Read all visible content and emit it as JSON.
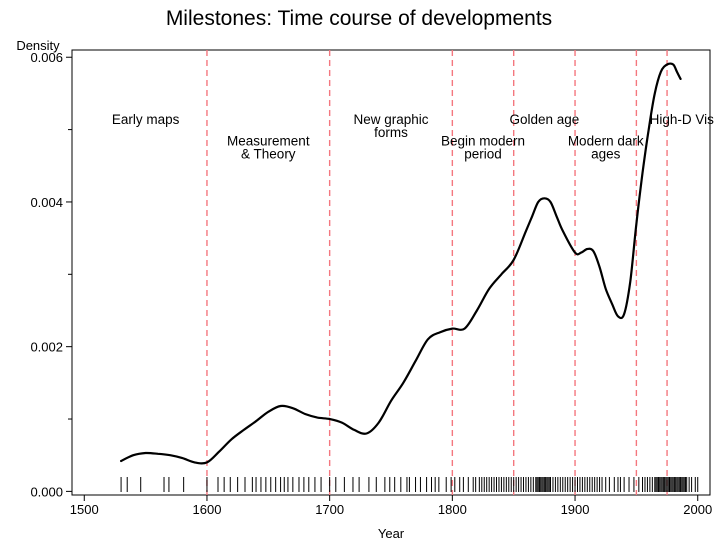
{
  "chart_data": {
    "type": "line",
    "title": "Milestones: Time course of developments",
    "xlabel": "Year",
    "ylabel": "Density",
    "xlim": [
      1490,
      2010
    ],
    "ylim": [
      -5e-05,
      0.0061
    ],
    "x_ticks": [
      1500,
      1600,
      1700,
      1800,
      1900,
      2000
    ],
    "y_ticks": [
      0.0,
      0.002,
      0.004,
      0.006
    ],
    "y_tick_labels": [
      "0.000",
      "0.002",
      "0.004",
      "0.006"
    ],
    "y_minor_ticks": [
      0.001,
      0.003,
      0.005
    ],
    "grid": false,
    "series": [
      {
        "color": "#000000",
        "x": [
          1530,
          1540,
          1550,
          1560,
          1570,
          1580,
          1590,
          1600,
          1610,
          1620,
          1630,
          1640,
          1650,
          1660,
          1670,
          1680,
          1690,
          1700,
          1710,
          1720,
          1730,
          1740,
          1750,
          1760,
          1770,
          1780,
          1790,
          1800,
          1810,
          1820,
          1830,
          1840,
          1850,
          1860,
          1865,
          1870,
          1875,
          1880,
          1885,
          1890,
          1900,
          1905,
          1910,
          1915,
          1920,
          1925,
          1930,
          1935,
          1940,
          1945,
          1950,
          1955,
          1960,
          1965,
          1970,
          1975,
          1980,
          1983,
          1986
        ],
        "y": [
          0.00042,
          0.0005,
          0.00053,
          0.00052,
          0.0005,
          0.00046,
          0.0004,
          0.0004,
          0.00055,
          0.00072,
          0.00085,
          0.00097,
          0.0011,
          0.00118,
          0.00115,
          0.00107,
          0.00102,
          0.001,
          0.00095,
          0.00085,
          0.0008,
          0.00095,
          0.00125,
          0.0015,
          0.0018,
          0.0021,
          0.0022,
          0.00225,
          0.00225,
          0.0025,
          0.0028,
          0.003,
          0.0032,
          0.0036,
          0.0038,
          0.004,
          0.00405,
          0.004,
          0.0038,
          0.0036,
          0.0033,
          0.0033,
          0.00335,
          0.00332,
          0.0031,
          0.0028,
          0.0026,
          0.00242,
          0.00245,
          0.0029,
          0.0037,
          0.0044,
          0.005,
          0.0055,
          0.0058,
          0.0059,
          0.0059,
          0.0058,
          0.0057
        ]
      }
    ],
    "period_lines": [
      1600,
      1700,
      1800,
      1850,
      1900,
      1950,
      1975
    ],
    "period_line_color": "#f4777f",
    "period_labels": [
      {
        "lines": [
          "Early maps"
        ],
        "x": 1550,
        "y": 0.00508
      },
      {
        "lines": [
          "Measurement",
          "& Theory"
        ],
        "x": 1650,
        "y": 0.00478
      },
      {
        "lines": [
          "New graphic",
          "forms"
        ],
        "x": 1750,
        "y": 0.00508
      },
      {
        "lines": [
          "Begin modern",
          "period"
        ],
        "x": 1825,
        "y": 0.00478
      },
      {
        "lines": [
          "Golden age"
        ],
        "x": 1875,
        "y": 0.00508
      },
      {
        "lines": [
          "Modern dark",
          "ages"
        ],
        "x": 1925,
        "y": 0.00478
      },
      {
        "lines": [
          "High-D Vis"
        ],
        "x": 1987,
        "y": 0.00508
      }
    ],
    "rug": [
      1530,
      1535,
      1546,
      1565,
      1569,
      1581,
      1600,
      1609,
      1614,
      1619,
      1625,
      1631,
      1637,
      1640,
      1644,
      1648,
      1652,
      1656,
      1660,
      1663,
      1666,
      1670,
      1675,
      1679,
      1683,
      1688,
      1693,
      1700,
      1705,
      1712,
      1719,
      1724,
      1732,
      1738,
      1745,
      1749,
      1753,
      1758,
      1763,
      1765,
      1770,
      1774,
      1779,
      1783,
      1786,
      1789,
      1795,
      1799,
      1802,
      1806,
      1809,
      1813,
      1817,
      1819,
      1822,
      1824,
      1826,
      1828,
      1830,
      1832,
      1834,
      1836,
      1838,
      1840,
      1842,
      1844,
      1846,
      1848,
      1850,
      1852,
      1854,
      1856,
      1858,
      1860,
      1862,
      1864,
      1866,
      1868,
      1869,
      1870,
      1871,
      1872,
      1873,
      1874,
      1875,
      1876,
      1877,
      1878,
      1879,
      1880,
      1882,
      1884,
      1886,
      1888,
      1890,
      1892,
      1894,
      1896,
      1898,
      1900,
      1902,
      1904,
      1906,
      1908,
      1910,
      1912,
      1914,
      1916,
      1918,
      1920,
      1922,
      1925,
      1928,
      1932,
      1935,
      1937,
      1940,
      1944,
      1948,
      1952,
      1955,
      1957,
      1959,
      1961,
      1963,
      1965,
      1966,
      1967,
      1968,
      1969,
      1970,
      1971,
      1972,
      1973,
      1974,
      1975,
      1976,
      1977,
      1978,
      1979,
      1980,
      1981,
      1982,
      1983,
      1984,
      1985,
      1986,
      1987,
      1988,
      1989,
      1990,
      1991,
      1993,
      1995,
      1998,
      2000
    ]
  }
}
